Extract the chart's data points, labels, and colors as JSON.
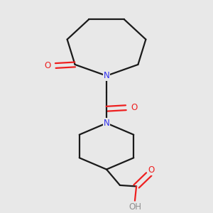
{
  "background_color": "#e8e8e8",
  "line_color": "#1a1a1a",
  "nitrogen_color": "#3030ee",
  "oxygen_color": "#ee2020",
  "hydrogen_color": "#909090",
  "line_width": 1.6,
  "figsize": [
    3.0,
    3.0
  ],
  "dpi": 100,
  "xlim": [
    0.15,
    0.85
  ],
  "ylim": [
    0.05,
    0.97
  ]
}
